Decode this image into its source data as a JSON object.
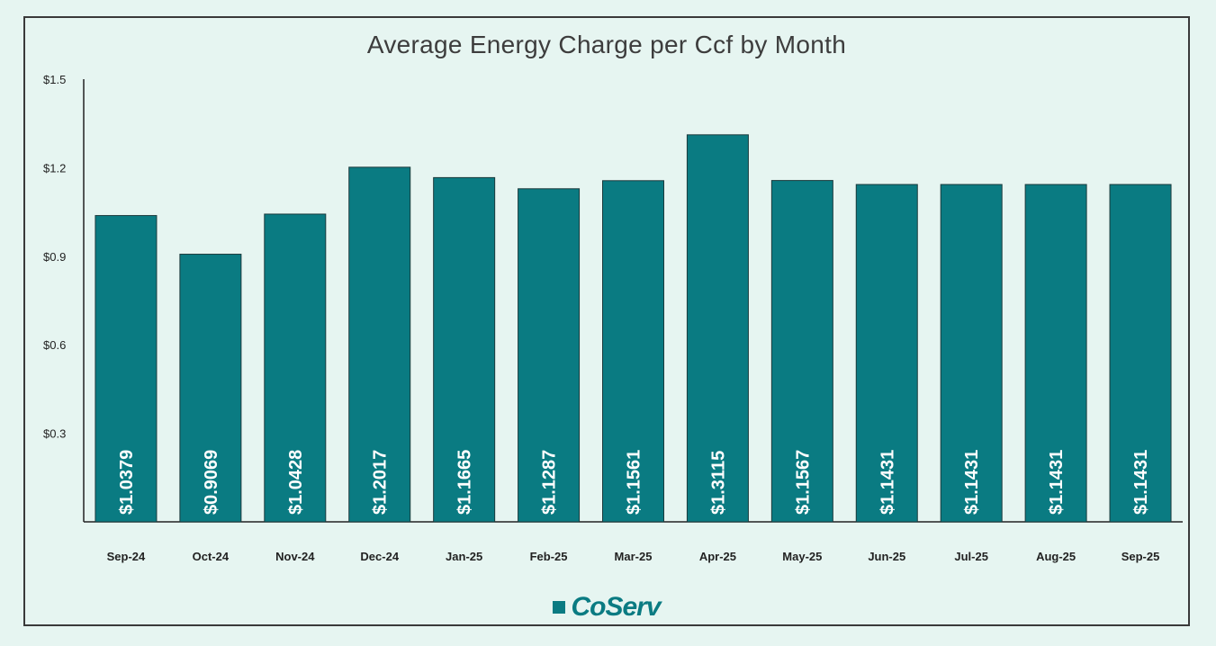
{
  "colors": {
    "bar": "#0a7b82",
    "axis": "#222222",
    "background": "#e6f5f1"
  },
  "logo": {
    "text": "CoServ",
    "icon": "square-icon"
  },
  "chart_data": {
    "type": "bar",
    "title": "Average Energy Charge per Ccf by Month",
    "xlabel": "",
    "ylabel": "",
    "ylim": [
      0,
      1.5
    ],
    "yticks": [
      {
        "value": 0.3,
        "label": "$0.3"
      },
      {
        "value": 0.6,
        "label": "$0.6"
      },
      {
        "value": 0.9,
        "label": "$0.9"
      },
      {
        "value": 1.2,
        "label": "$1.2"
      },
      {
        "value": 1.5,
        "label": "$1.5"
      }
    ],
    "categories": [
      "Sep-24",
      "Oct-24",
      "Nov-24",
      "Dec-24",
      "Jan-25",
      "Feb-25",
      "Mar-25",
      "Apr-25",
      "May-25",
      "Jun-25",
      "Jul-25",
      "Aug-25",
      "Sep-25"
    ],
    "values": [
      1.0379,
      0.9069,
      1.0428,
      1.2017,
      1.1665,
      1.1287,
      1.1561,
      1.3115,
      1.1567,
      1.1431,
      1.1431,
      1.1431,
      1.1431
    ],
    "data_labels": [
      "$1.0379",
      "$0.9069",
      "$1.0428",
      "$1.2017",
      "$1.1665",
      "$1.1287",
      "$1.1561",
      "$1.3115",
      "$1.1567",
      "$1.1431",
      "$1.1431",
      "$1.1431",
      "$1.1431"
    ]
  }
}
